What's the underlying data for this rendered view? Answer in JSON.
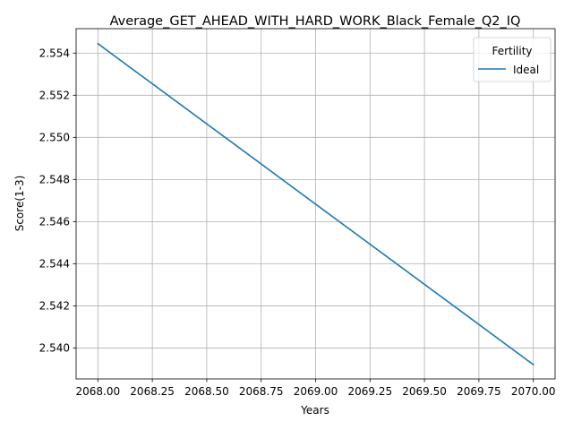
{
  "chart_data": {
    "type": "line",
    "title": "Average_GET_AHEAD_WITH_HARD_WORK_Black_Female_Q2_IQ",
    "xlabel": "Years",
    "ylabel": "Score(1-3)",
    "x_ticks": [
      "2068.00",
      "2068.25",
      "2068.50",
      "2068.75",
      "2069.00",
      "2069.25",
      "2069.50",
      "2069.75",
      "2070.00"
    ],
    "y_ticks": [
      "2.540",
      "2.542",
      "2.544",
      "2.546",
      "2.548",
      "2.550",
      "2.552",
      "2.554"
    ],
    "xlim": [
      2067.9,
      2070.1
    ],
    "ylim": [
      2.53853,
      2.55516
    ],
    "grid": true,
    "legend": {
      "title": "Fertility",
      "placement": "top-right"
    },
    "series": [
      {
        "name": "Ideal",
        "color": "#1f77b4",
        "x": [
          2068,
          2070
        ],
        "y": [
          2.55445,
          2.53921
        ]
      }
    ]
  }
}
